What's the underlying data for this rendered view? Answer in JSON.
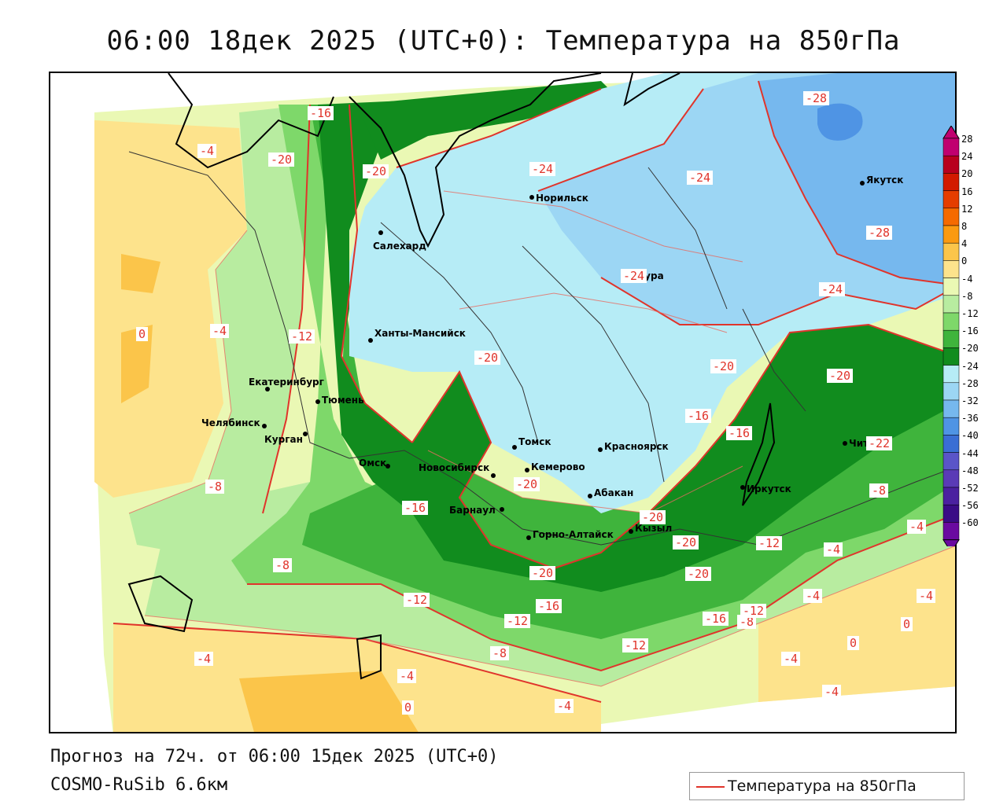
{
  "title": "06:00 18дек 2025 (UTC+0): Температура на 850гПа",
  "footer": {
    "forecast": "Прогноз на 72ч. от 06:00 15дек 2025 (UTC+0)",
    "model": "COSMO-RuSib 6.6км"
  },
  "legend": {
    "label": "Температура на 850гПа",
    "color": "#e0342b"
  },
  "scale": {
    "labels": [
      "28",
      "24",
      "20",
      "16",
      "12",
      "8",
      "4",
      "0",
      "-4",
      "-8",
      "-12",
      "-16",
      "-20",
      "-24",
      "-28",
      "-32",
      "-36",
      "-40",
      "-44",
      "-48",
      "-52",
      "-56",
      "-60"
    ],
    "colors": [
      "#c0006f",
      "#b8001e",
      "#d21a00",
      "#e53d00",
      "#f56a00",
      "#fb9a10",
      "#fbc54a",
      "#fde38c",
      "#eaf8b4",
      "#b8eca0",
      "#7ed86a",
      "#3fb43c",
      "#118c1e",
      "#b6ecf6",
      "#9cd6f4",
      "#76b8ee",
      "#4f94e4",
      "#3a6ed4",
      "#5a55c8",
      "#5a3bb6",
      "#4b21a0",
      "#3a0c86",
      "#6a0aa0"
    ]
  },
  "cities": [
    {
      "name": "Салехард"
    },
    {
      "name": "Норильск"
    },
    {
      "name": "Тура"
    },
    {
      "name": "Якутск"
    },
    {
      "name": "Ханты-Мансийск"
    },
    {
      "name": "Екатеринбург"
    },
    {
      "name": "Тюмень"
    },
    {
      "name": "Челябинск"
    },
    {
      "name": "Курган"
    },
    {
      "name": "Омск"
    },
    {
      "name": "Новосибирск"
    },
    {
      "name": "Томск"
    },
    {
      "name": "Красноярск"
    },
    {
      "name": "Кемерово"
    },
    {
      "name": "Абакан"
    },
    {
      "name": "Барнаул"
    },
    {
      "name": "Горно-Алтайск"
    },
    {
      "name": "Кызыл"
    },
    {
      "name": "Иркутск"
    },
    {
      "name": "Чита"
    }
  ],
  "isotherm_labels": [
    "-16",
    "-4",
    "-20",
    "-20",
    "-24",
    "-24",
    "-28",
    "-28",
    "-24",
    "-24",
    "0",
    "-4",
    "-12",
    "-20",
    "-20",
    "-20",
    "-16",
    "-16",
    "-20",
    "-8",
    "-8",
    "-16",
    "-20",
    "-20",
    "-20",
    "-12",
    "-4",
    "-4",
    "-8",
    "-20",
    "-16",
    "-12",
    "-12",
    "-16",
    "-8",
    "-12",
    "-4",
    "-4",
    "-4",
    "-8",
    "-4",
    "0",
    "-4",
    "0",
    "-4",
    "-12",
    "-22",
    "-4",
    "0",
    "-4"
  ]
}
